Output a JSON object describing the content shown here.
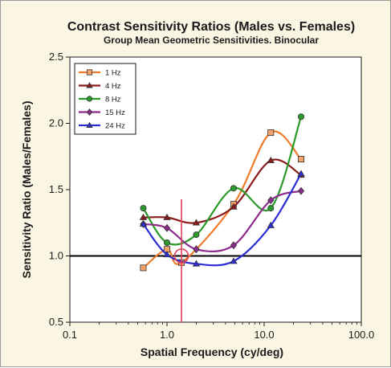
{
  "chart_data": {
    "type": "line",
    "title": "Contrast Sensitivity Ratios (Males vs. Females)",
    "subtitle": "Group Mean Geometric Sensitivities. Binocular",
    "xlabel": "Spatial Frequency (cy/deg)",
    "ylabel": "Sensitivity Ratio (Males/Females)",
    "x_scale": "log",
    "xlim": [
      0.1,
      100.0
    ],
    "ylim": [
      0.5,
      2.5
    ],
    "x_ticks": [
      0.1,
      1.0,
      10.0,
      100.0
    ],
    "x_tick_labels": [
      "0.1",
      "1.0",
      "10.0",
      "100.0"
    ],
    "y_ticks": [
      0.5,
      1.0,
      1.5,
      2.0,
      2.5
    ],
    "y_tick_labels": [
      "0.5",
      "1.0",
      "1.5",
      "2.0",
      "2.5"
    ],
    "grid": false,
    "legend_position": "top-left",
    "reference_line_y": 1.0,
    "vertical_marker_x": 1.41,
    "circle_marker": {
      "x": 1.41,
      "y": 1.0
    },
    "series": [
      {
        "name": "1 Hz",
        "color": "#f07b2a",
        "marker": "square",
        "x": [
          0.57,
          1.0,
          1.41,
          4.85,
          11.7,
          24.0
        ],
        "y": [
          0.91,
          1.05,
          0.95,
          1.39,
          1.93,
          1.73
        ]
      },
      {
        "name": "4 Hz",
        "color": "#8b1a1a",
        "marker": "triangle",
        "x": [
          0.57,
          1.0,
          2.0,
          4.85,
          11.7,
          24.0
        ],
        "y": [
          1.29,
          1.29,
          1.25,
          1.37,
          1.72,
          1.61
        ]
      },
      {
        "name": "8 Hz",
        "color": "#2b9a2b",
        "marker": "circle",
        "x": [
          0.57,
          1.0,
          2.0,
          4.85,
          11.7,
          24.0
        ],
        "y": [
          1.36,
          1.1,
          1.16,
          1.51,
          1.36,
          2.05
        ]
      },
      {
        "name": "15 Hz",
        "color": "#8e2b8e",
        "marker": "diamond",
        "x": [
          0.57,
          1.0,
          2.0,
          4.85,
          11.7,
          24.0
        ],
        "y": [
          1.24,
          1.21,
          1.05,
          1.08,
          1.42,
          1.49
        ]
      },
      {
        "name": "24 Hz",
        "color": "#2d2dd6",
        "marker": "triangle",
        "x": [
          0.57,
          1.0,
          2.0,
          4.85,
          11.7,
          24.0
        ],
        "y": [
          1.24,
          1.01,
          0.94,
          0.96,
          1.23,
          1.62
        ]
      }
    ]
  }
}
